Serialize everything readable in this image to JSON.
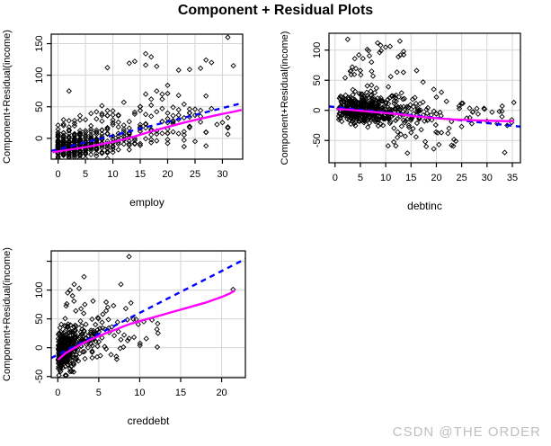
{
  "title": "Component + Residual Plots",
  "watermark": {
    "text": "CSDN @THE ORDER",
    "color": "#bfbfbf"
  },
  "colors": {
    "regression_line": "#0000ff",
    "smooth_line": "#ff00ff",
    "grid": "#d4d4d4",
    "point": "#000000",
    "box": "#000000",
    "text": "#000000"
  },
  "chart_data": [
    {
      "type": "scatter",
      "name": "employ",
      "xlabel": "employ",
      "ylabel": "Component+Residual(income)",
      "marker": "open-diamond",
      "grid": true,
      "xlim": [
        -1.25,
        33.7
      ],
      "ylim": [
        -33,
        165
      ],
      "x_ticks": [
        0,
        5,
        10,
        15,
        20,
        25,
        30
      ],
      "x_tick_labels": [
        "0",
        "5",
        "10",
        "15",
        "20",
        "25",
        "30"
      ],
      "y_ticks": [
        0,
        50,
        100,
        150
      ],
      "y_tick_labels": [
        "0",
        "50",
        "100",
        "150"
      ],
      "regression": {
        "dashed": true,
        "x": [
          -1.25,
          33.7
        ],
        "y": [
          -20,
          56
        ]
      },
      "smooth": {
        "pts": [
          [
            -1,
            -22
          ],
          [
            2,
            -18
          ],
          [
            5,
            -14
          ],
          [
            8,
            -9
          ],
          [
            11,
            -4
          ],
          [
            14,
            3
          ],
          [
            17,
            11
          ],
          [
            20,
            18
          ],
          [
            23,
            25
          ],
          [
            26,
            31
          ],
          [
            29,
            37
          ],
          [
            32,
            42
          ],
          [
            33.5,
            45
          ]
        ]
      },
      "points": [
        [
          31,
          160
        ],
        [
          32,
          115
        ],
        [
          27,
          124
        ],
        [
          26,
          111
        ],
        [
          24,
          109
        ],
        [
          28,
          120
        ],
        [
          22,
          108
        ],
        [
          14,
          122
        ],
        [
          16,
          116
        ],
        [
          16,
          134
        ],
        [
          18,
          114
        ],
        [
          9,
          112
        ],
        [
          13,
          119
        ],
        [
          17,
          129
        ],
        [
          2,
          75
        ],
        [
          20,
          84
        ],
        [
          20,
          71
        ],
        [
          19,
          70
        ],
        [
          22,
          68
        ],
        [
          27,
          67
        ],
        [
          12,
          57
        ],
        [
          25,
          46
        ],
        [
          28,
          47
        ],
        [
          24,
          40
        ],
        [
          26,
          35
        ],
        [
          29,
          22
        ],
        [
          30,
          25
        ],
        [
          23,
          -13
        ],
        [
          25,
          -5
        ],
        [
          27,
          -12
        ],
        [
          22,
          30
        ],
        [
          21,
          36
        ],
        [
          19,
          47
        ],
        [
          18,
          42
        ],
        [
          17,
          62
        ],
        [
          16,
          70
        ],
        [
          18,
          75
        ],
        [
          19,
          62
        ],
        [
          15,
          50
        ],
        [
          15,
          44
        ],
        [
          16,
          38
        ],
        [
          17,
          35
        ],
        [
          20,
          40
        ],
        [
          21,
          28
        ]
      ],
      "seed": 7,
      "clusters": [
        {
          "n": 430,
          "x": {
            "kind": "exp",
            "min": 0,
            "max": 31,
            "scale": 6.5,
            "round": true
          },
          "y": {
            "base": [
              -14,
              0.95
            ],
            "sd": 10,
            "up_p": 0.12,
            "up": [
              12,
              40
            ],
            "clamp": [
              -32,
              80
            ]
          }
        },
        {
          "n": 24,
          "x": {
            "kind": "unif",
            "min": 6,
            "max": 28,
            "round": true
          },
          "y": {
            "abs": [
              25,
              55
            ]
          }
        }
      ]
    },
    {
      "type": "scatter",
      "name": "debtinc",
      "xlabel": "debtinc",
      "ylabel": "Component+Residual(income)",
      "marker": "open-diamond",
      "grid": true,
      "xlim": [
        -1.2,
        36.6
      ],
      "ylim": [
        -87,
        128
      ],
      "x_ticks": [
        0,
        5,
        10,
        15,
        20,
        25,
        30,
        35
      ],
      "x_tick_labels": [
        "0",
        "5",
        "10",
        "15",
        "20",
        "25",
        "30",
        "35"
      ],
      "y_ticks": [
        -50,
        0,
        50,
        100
      ],
      "y_tick_labels": [
        "-50",
        "0",
        "50",
        "100"
      ],
      "regression": {
        "dashed": true,
        "x": [
          -1.2,
          36.6
        ],
        "y": [
          6.5,
          -27
        ]
      },
      "smooth": {
        "pts": [
          [
            0.3,
            2
          ],
          [
            2,
            1.5
          ],
          [
            4,
            0
          ],
          [
            6,
            -1.5
          ],
          [
            8,
            -3
          ],
          [
            10,
            -4.5
          ],
          [
            12,
            -6
          ],
          [
            14,
            -8
          ],
          [
            16,
            -10
          ],
          [
            18,
            -11.5
          ],
          [
            20,
            -13
          ],
          [
            23,
            -15
          ],
          [
            26,
            -16
          ],
          [
            29,
            -17
          ],
          [
            32,
            -17.5
          ],
          [
            35.3,
            -18
          ]
        ]
      },
      "points": [
        [
          2.5,
          118
        ],
        [
          8.4,
          112
        ],
        [
          12.8,
          115
        ],
        [
          9,
          108
        ],
        [
          10,
          105
        ],
        [
          8.8,
          96
        ],
        [
          6.6,
          99
        ],
        [
          9.1,
          99
        ],
        [
          4.7,
          92
        ],
        [
          12.5,
          89
        ],
        [
          5.5,
          86
        ],
        [
          7.2,
          80
        ],
        [
          3.4,
          72
        ],
        [
          5,
          66
        ],
        [
          3,
          65
        ],
        [
          13.5,
          63
        ],
        [
          16.1,
          66
        ],
        [
          7.5,
          57
        ],
        [
          11,
          56
        ],
        [
          2,
          54
        ],
        [
          19.5,
          35
        ],
        [
          21,
          30
        ],
        [
          20,
          22
        ],
        [
          22,
          15
        ],
        [
          24.5,
          7
        ],
        [
          26,
          -13
        ],
        [
          28,
          3
        ],
        [
          29.5,
          2
        ],
        [
          31,
          -3
        ],
        [
          33,
          7
        ],
        [
          35.3,
          13
        ],
        [
          30,
          -18
        ],
        [
          32,
          -22
        ],
        [
          34,
          -25
        ],
        [
          14.3,
          -71
        ],
        [
          33.5,
          -70
        ],
        [
          18,
          -60
        ],
        [
          19.5,
          -64
        ],
        [
          23,
          -58
        ],
        [
          17.8,
          -52
        ],
        [
          20.5,
          -57
        ],
        [
          16,
          -44
        ],
        [
          13,
          -40
        ],
        [
          15,
          -37
        ],
        [
          17,
          -32
        ],
        [
          21,
          -37
        ],
        [
          22.5,
          -30
        ],
        [
          25,
          -27
        ],
        [
          27,
          -22
        ],
        [
          12.3,
          -45
        ]
      ],
      "seed": 13,
      "clusters": [
        {
          "n": 470,
          "x": {
            "kind": "exp2",
            "min": 0.4,
            "max": 30,
            "scale": 3.5
          },
          "y": {
            "base": [
              2,
              -0.55
            ],
            "sd": 11,
            "up_p": 0.13,
            "up": [
              12,
              36
            ],
            "clamp": [
              -38,
              62
            ]
          }
        },
        {
          "n": 14,
          "x": {
            "kind": "unif",
            "min": 1.5,
            "max": 14
          },
          "y": {
            "abs": [
              55,
              110
            ]
          }
        },
        {
          "n": 10,
          "x": {
            "kind": "unif",
            "min": 10,
            "max": 24
          },
          "y": {
            "abs": [
              -60,
              -36
            ]
          }
        },
        {
          "n": 10,
          "x": {
            "kind": "unif",
            "min": 24,
            "max": 36
          },
          "y": {
            "abs": [
              -22,
              12
            ]
          }
        }
      ]
    },
    {
      "type": "scatter",
      "name": "creddebt",
      "xlabel": "creddebt",
      "ylabel": "Component+Residual(income)",
      "marker": "open-diamond",
      "grid": true,
      "xlim": [
        -0.8,
        22.9
      ],
      "ylim": [
        -52,
        168
      ],
      "x_ticks": [
        0,
        5,
        10,
        15,
        20
      ],
      "x_tick_labels": [
        "0",
        "5",
        "10",
        "15",
        "20"
      ],
      "y_ticks": [
        -50,
        0,
        50,
        100,
        150
      ],
      "y_tick_labels": [
        "-50",
        "0",
        "50",
        "100",
        ""
      ],
      "regression": {
        "dashed": true,
        "x": [
          -0.8,
          22.9
        ],
        "y": [
          -18,
          154
        ]
      },
      "smooth": {
        "pts": [
          [
            0.05,
            -21
          ],
          [
            0.5,
            -15
          ],
          [
            1,
            -9
          ],
          [
            2,
            -1
          ],
          [
            3,
            7
          ],
          [
            4,
            14
          ],
          [
            5,
            20
          ],
          [
            6,
            26
          ],
          [
            7,
            31
          ],
          [
            8,
            37
          ],
          [
            9,
            42
          ],
          [
            10,
            46
          ],
          [
            11,
            50
          ],
          [
            12,
            54
          ],
          [
            13,
            58
          ],
          [
            14,
            62
          ],
          [
            15,
            66
          ],
          [
            16,
            70
          ],
          [
            17,
            74
          ],
          [
            18,
            78
          ],
          [
            19,
            83
          ],
          [
            20,
            88
          ],
          [
            21,
            94
          ],
          [
            21.6,
            99
          ]
        ]
      },
      "points": [
        [
          8.7,
          158
        ],
        [
          3.2,
          123
        ],
        [
          2.0,
          110
        ],
        [
          7.7,
          110
        ],
        [
          2.6,
          103
        ],
        [
          1.5,
          100
        ],
        [
          21.4,
          101
        ],
        [
          1.2,
          95
        ],
        [
          1.8,
          90
        ],
        [
          4.3,
          81
        ],
        [
          5.9,
          79
        ],
        [
          6.8,
          73
        ],
        [
          8.3,
          68
        ],
        [
          5.9,
          64
        ],
        [
          2.2,
          64
        ],
        [
          3.3,
          75
        ],
        [
          10.5,
          45
        ],
        [
          12.1,
          32
        ],
        [
          11.5,
          48
        ],
        [
          8.7,
          16
        ],
        [
          7.7,
          14
        ],
        [
          5.9,
          -2
        ],
        [
          7.2,
          -20
        ],
        [
          6.5,
          -12
        ],
        [
          5.2,
          -14
        ],
        [
          4.6,
          40
        ],
        [
          6.1,
          70
        ],
        [
          5.5,
          58
        ],
        [
          4.9,
          52
        ],
        [
          6.6,
          36
        ],
        [
          7.4,
          28
        ],
        [
          8.1,
          22
        ],
        [
          9.3,
          18
        ],
        [
          4.2,
          -8
        ],
        [
          4.8,
          -16
        ]
      ],
      "seed": 21,
      "clusters": [
        {
          "n": 430,
          "x": {
            "kind": "exp",
            "min": 0.05,
            "max": 11,
            "scale": 1.4
          },
          "y": {
            "base": [
              -10,
              7.5
            ],
            "sd": 17,
            "up_p": 0.09,
            "up": [
              12,
              40
            ],
            "clamp": [
              -48,
              125
            ]
          }
        },
        {
          "n": 16,
          "x": {
            "kind": "unif",
            "min": 4,
            "max": 13
          },
          "y": {
            "abs": [
              -18,
              52
            ]
          }
        }
      ]
    }
  ]
}
